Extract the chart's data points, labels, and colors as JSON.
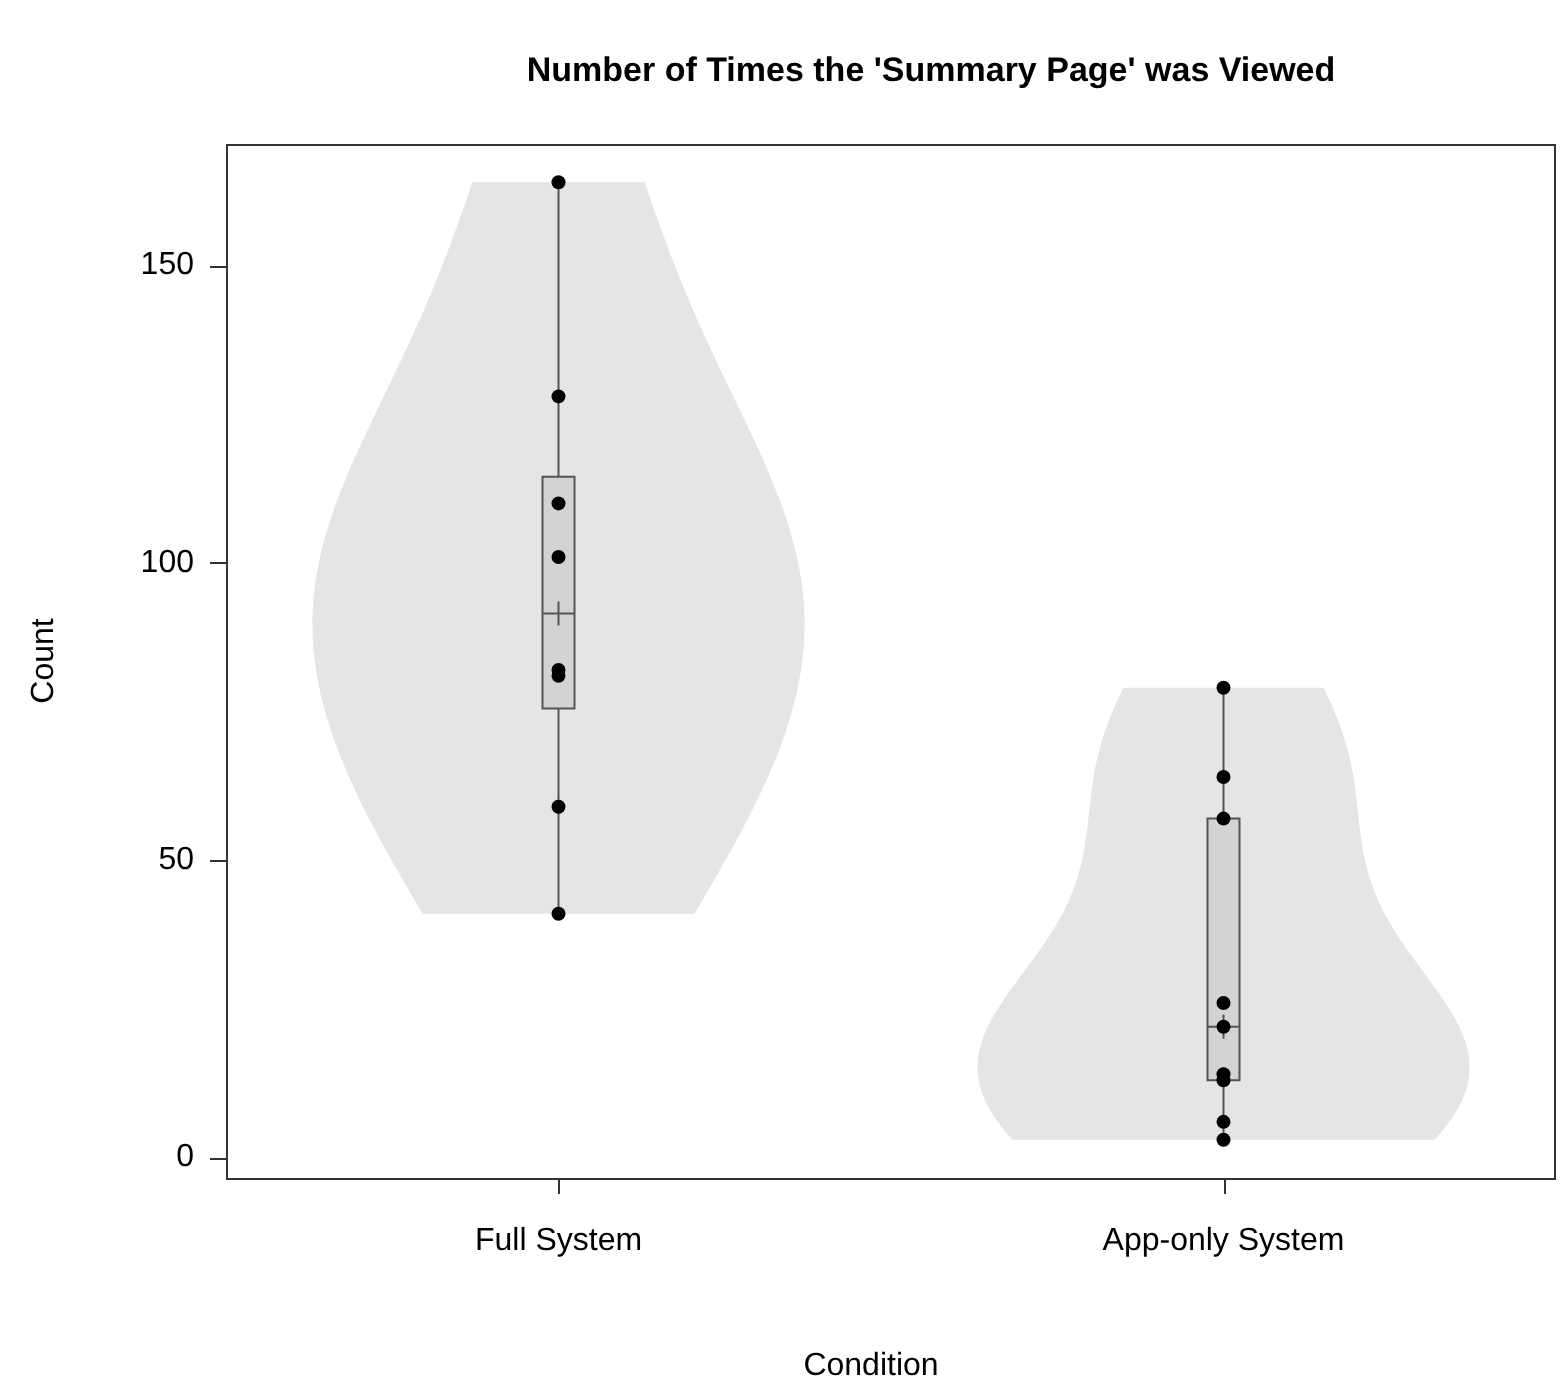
{
  "chart_data": {
    "type": "box",
    "title": "Number of Times the 'Summary Page' was Viewed",
    "xlabel": "Condition",
    "ylabel": "Count",
    "categories": [
      "Full System",
      "App-only System"
    ],
    "boxes": [
      {
        "low": 41,
        "q1": 75.5,
        "median": 91.5,
        "q3": 114.5,
        "high": 164
      },
      {
        "low": 3,
        "q1": 13,
        "median": 22,
        "q3": 57,
        "high": 79
      }
    ],
    "color": "#d3d3d3",
    "series": [
      {
        "type": "scatter",
        "color": "#000000",
        "x": [
          "Full System",
          "Full System",
          "Full System",
          "Full System",
          "Full System",
          "Full System",
          "Full System",
          "Full System",
          "App-only System",
          "App-only System",
          "App-only System",
          "App-only System",
          "App-only System",
          "App-only System",
          "App-only System",
          "App-only System",
          "App-only System"
        ],
        "values": [
          164,
          128,
          110,
          101,
          82,
          81,
          59,
          41,
          79,
          64,
          57,
          26,
          22,
          14,
          13,
          6,
          3
        ]
      }
    ],
    "marker": "circle",
    "ylim": [
      -3.44,
      170.44
    ],
    "yticks": [
      0,
      50,
      100,
      150
    ],
    "grid": false,
    "legend": false
  }
}
